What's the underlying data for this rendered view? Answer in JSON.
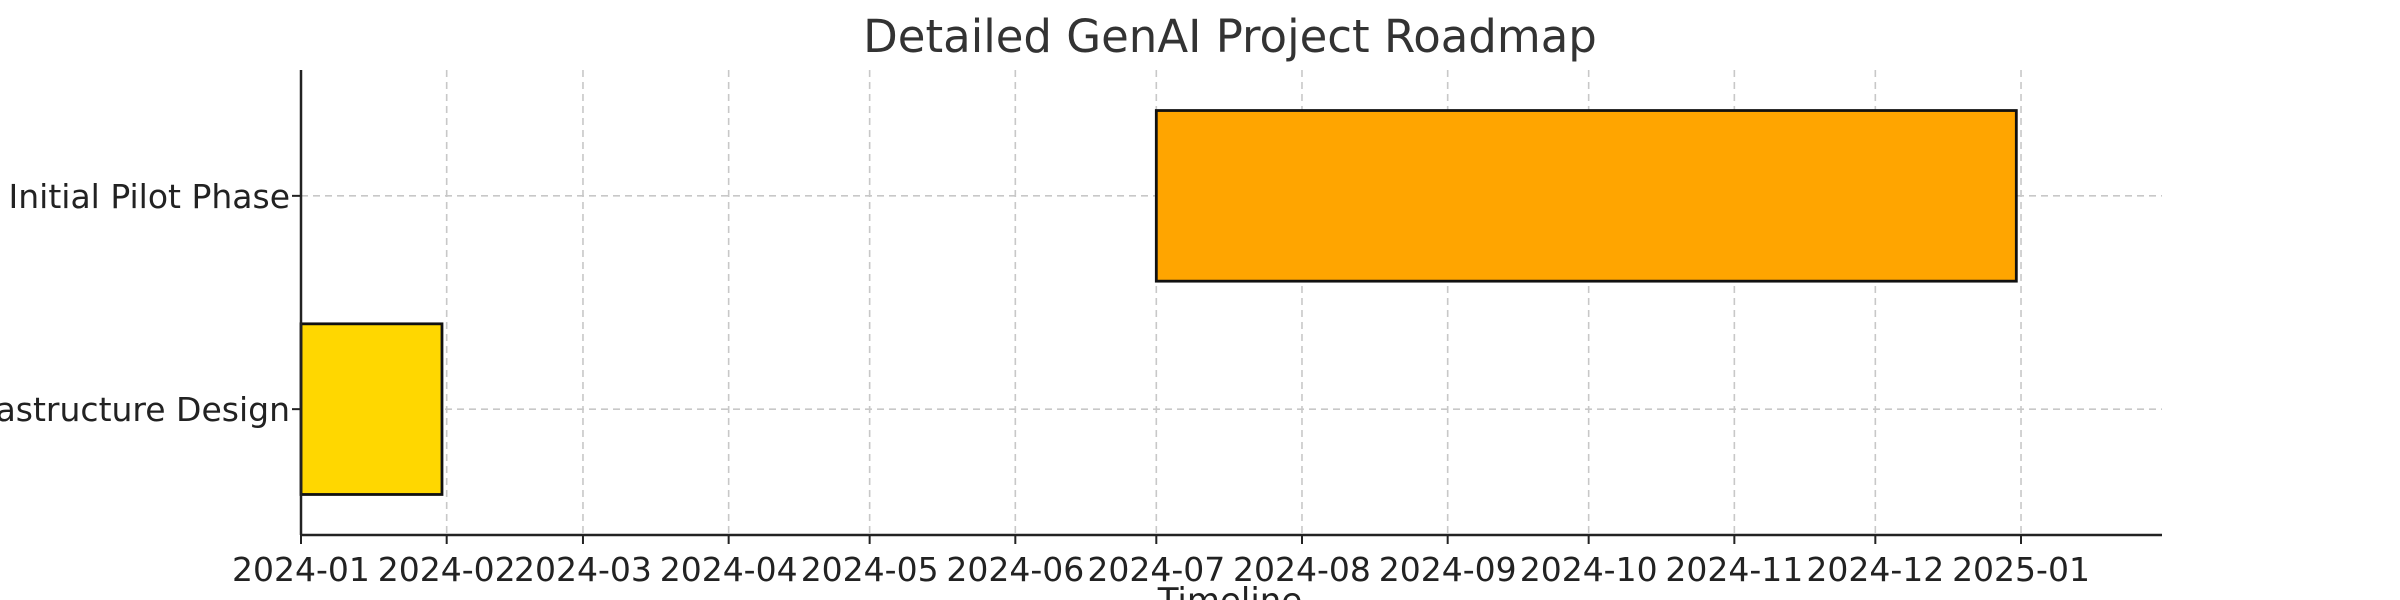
{
  "chart_data": {
    "type": "bar",
    "orientation": "horizontal",
    "title": "Detailed GenAI Project Roadmap",
    "xlabel": "Timeline",
    "ylabel": "",
    "x_ticks": [
      "2024-01",
      "2024-02",
      "2024-03",
      "2024-04",
      "2024-05",
      "2024-06",
      "2024-07",
      "2024-08",
      "2024-09",
      "2024-10",
      "2024-11",
      "2024-12",
      "2025-01"
    ],
    "xlim": [
      "2024-01-01",
      "2025-01-31"
    ],
    "grid": true,
    "categories": [
      "Infrastructure Design",
      "Initial Pilot Phase"
    ],
    "tasks": [
      {
        "name": "Infrastructure Design",
        "start": "2024-01-01",
        "end": "2024-01-31",
        "color": "#FFD700"
      },
      {
        "name": "Initial Pilot Phase",
        "start": "2024-07-01",
        "end": "2024-12-31",
        "color": "#FFA500"
      }
    ]
  }
}
